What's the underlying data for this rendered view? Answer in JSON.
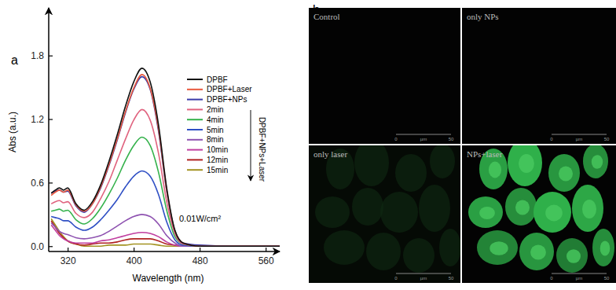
{
  "chart_data": {
    "type": "line",
    "x_label": "Wavelength (nm)",
    "y_label": "Abs (a.u.)",
    "annotations": [
      "DPBF+NPs+Laser",
      "0.01W/cm²"
    ],
    "legend": "upper right",
    "grid": false,
    "xlim": [
      297,
      577
    ],
    "ylim": [
      -0.05,
      2.25
    ],
    "xticks": [
      320,
      400,
      480,
      560
    ],
    "yticks": [
      {
        "value": 0,
        "label": "0.0"
      },
      0.6,
      1.2,
      1.8
    ],
    "x": [
      300,
      305,
      310,
      315,
      320,
      330,
      340,
      350,
      360,
      370,
      380,
      390,
      400,
      410,
      420,
      430,
      440,
      450,
      460,
      480,
      520,
      580
    ],
    "series": [
      {
        "name": "DPBF",
        "color": "#111111",
        "values": [
          0.5,
          0.53,
          0.55,
          0.53,
          0.55,
          0.4,
          0.34,
          0.42,
          0.58,
          0.8,
          1.05,
          1.32,
          1.55,
          1.68,
          1.55,
          1.15,
          0.55,
          0.15,
          0.03,
          0.0,
          0.0,
          0.0
        ]
      },
      {
        "name": "DPBF+Laser",
        "color": "#e8573c",
        "values": [
          0.48,
          0.51,
          0.53,
          0.51,
          0.53,
          0.39,
          0.33,
          0.4,
          0.56,
          0.77,
          1.01,
          1.27,
          1.49,
          1.62,
          1.49,
          1.11,
          0.53,
          0.14,
          0.03,
          0.0,
          0.0,
          0.0
        ]
      },
      {
        "name": "DPBF+NPs",
        "color": "#3b3ba8",
        "values": [
          0.5,
          0.52,
          0.53,
          0.51,
          0.52,
          0.38,
          0.32,
          0.4,
          0.55,
          0.76,
          1.0,
          1.26,
          1.48,
          1.6,
          1.48,
          1.09,
          0.52,
          0.14,
          0.03,
          0.01,
          0.0,
          0.0
        ]
      },
      {
        "name": "2min",
        "color": "#e0637f",
        "values": [
          0.4,
          0.42,
          0.43,
          0.41,
          0.42,
          0.31,
          0.27,
          0.32,
          0.45,
          0.61,
          0.81,
          1.01,
          1.19,
          1.29,
          1.19,
          0.88,
          0.42,
          0.12,
          0.02,
          0.0,
          0.0,
          0.0
        ]
      },
      {
        "name": "4min",
        "color": "#35b24c",
        "values": [
          0.33,
          0.34,
          0.35,
          0.33,
          0.34,
          0.25,
          0.21,
          0.26,
          0.36,
          0.49,
          0.64,
          0.81,
          0.95,
          1.03,
          0.95,
          0.7,
          0.34,
          0.09,
          0.02,
          0.0,
          0.0,
          0.0
        ]
      },
      {
        "name": "5min",
        "color": "#2f4fc4",
        "values": [
          0.28,
          0.27,
          0.26,
          0.24,
          0.24,
          0.18,
          0.15,
          0.18,
          0.25,
          0.34,
          0.44,
          0.56,
          0.66,
          0.71,
          0.66,
          0.49,
          0.23,
          0.06,
          0.01,
          0.0,
          0.0,
          0.0
        ]
      },
      {
        "name": "8min",
        "color": "#8e52b0",
        "values": [
          0.22,
          0.18,
          0.14,
          0.12,
          0.11,
          0.08,
          0.07,
          0.08,
          0.1,
          0.14,
          0.19,
          0.24,
          0.28,
          0.3,
          0.28,
          0.21,
          0.1,
          0.03,
          0.0,
          0.0,
          0.0,
          0.0
        ]
      },
      {
        "name": "10min",
        "color": "#c03fa0",
        "values": [
          0.2,
          0.15,
          0.1,
          0.07,
          0.05,
          0.03,
          0.03,
          0.03,
          0.05,
          0.06,
          0.08,
          0.1,
          0.12,
          0.13,
          0.12,
          0.09,
          0.04,
          0.01,
          0.0,
          0.0,
          0.0,
          0.0
        ]
      },
      {
        "name": "12min",
        "color": "#b02222",
        "values": [
          0.24,
          0.18,
          0.12,
          0.08,
          0.05,
          0.02,
          0.01,
          0.02,
          0.03,
          0.03,
          0.04,
          0.06,
          0.07,
          0.07,
          0.07,
          0.05,
          0.02,
          0.01,
          0.0,
          0.0,
          0.0,
          0.0
        ]
      },
      {
        "name": "15min",
        "color": "#a39322",
        "values": [
          0.26,
          0.2,
          0.14,
          0.09,
          0.05,
          0.02,
          0.0,
          0.0,
          0.0,
          0.01,
          0.01,
          0.01,
          0.02,
          0.02,
          0.02,
          0.01,
          0.0,
          0.0,
          0.0,
          0.0,
          0.0,
          0.0
        ]
      }
    ]
  },
  "figure": {
    "panel_labels": [
      "a",
      "b"
    ],
    "images": [
      {
        "label": "Control"
      },
      {
        "label": "only NPs"
      },
      {
        "label": "only laser"
      },
      {
        "label": "NPs+laser"
      }
    ],
    "scale_bar": {
      "start": 0,
      "unit": "µm",
      "end": 50
    }
  }
}
